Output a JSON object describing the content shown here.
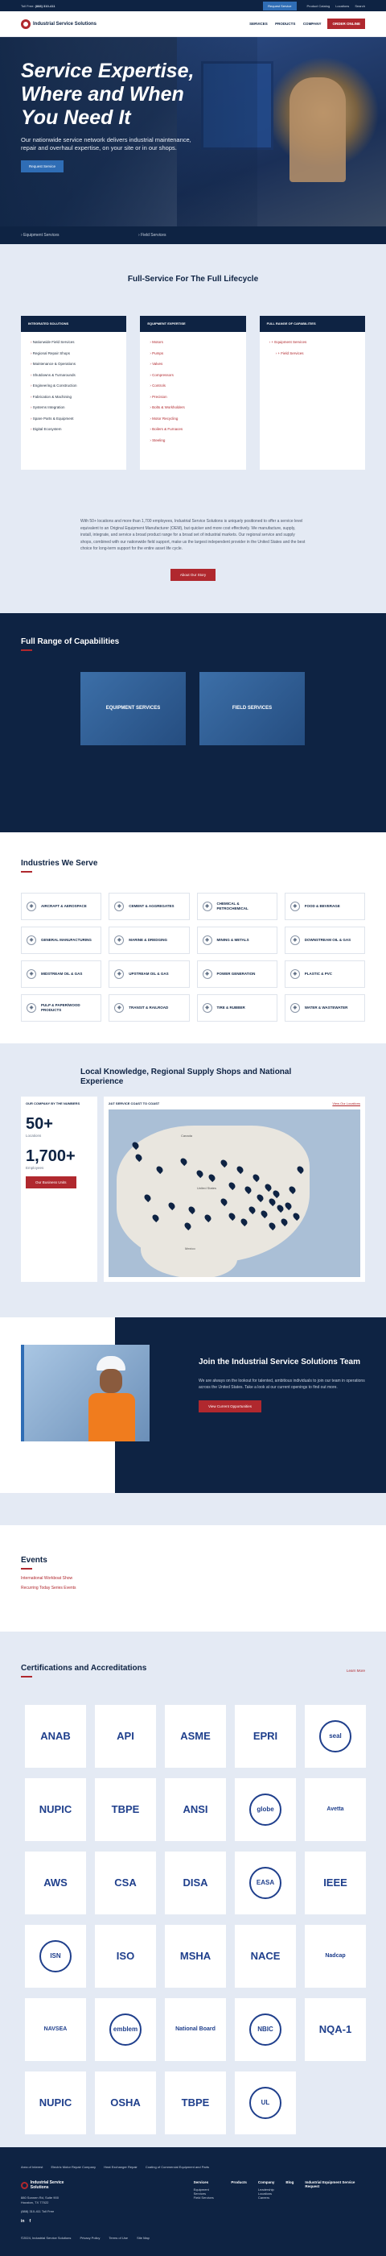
{
  "topbar": {
    "phone_label": "Toll Free:",
    "phone": "(888) 310-411",
    "request_btn": "Request Service",
    "links": [
      "Product Catalog",
      "Locations",
      "Search"
    ]
  },
  "header": {
    "brand": "Industrial Service Solutions",
    "nav": [
      "SERVICES",
      "PRODUCTS",
      "COMPANY"
    ],
    "order_btn": "ORDER ONLINE"
  },
  "hero": {
    "title": "Service Expertise, Where and When You Need It",
    "subtitle": "Our nationwide service network delivers industrial maintenance, repair and overhaul expertise, on your site or in our shops.",
    "button": "Request Service",
    "bottom_links": [
      "Equipment Services",
      "Field Services"
    ]
  },
  "lifecycle": {
    "title": "Full-Service For The Full Lifecycle",
    "cards": [
      {
        "head": "INTEGRATED SOLUTIONS",
        "items": [
          "Nationwide Field Services",
          "Regional Repair Shops",
          "Maintenance & Operations",
          "Shutdowns & Turnarounds",
          "Engineering & Construction",
          "Fabrication & Machining",
          "Systems Integration",
          "Spare Parts & Equipment",
          "Digital Ecosystem"
        ]
      },
      {
        "head": "EQUIPMENT EXPERTISE",
        "items": [
          "Motors",
          "Pumps",
          "Valves",
          "Compressors",
          "Controls",
          "Precision",
          "Bolts & Workholders",
          "Motor Recycling",
          "Boilers & Furnaces",
          "Steeling"
        ]
      },
      {
        "head": "FULL RANGE OF CAPABILITIES",
        "items": [
          "+ Equipment Services",
          "+ Field Services"
        ]
      }
    ],
    "paragraph": "With 50+ locations and more than 1,700 employees, Industrial Service Solutions is uniquely positioned to offer a service level equivalent to an Original Equipment Manufacturer (OEM), but quicker and more cost effectively. We manufacture, supply, install, integrate, and service a broad product range for a broad set of industrial markets. Our regional service and supply shops, combined with our nationwide field support, make us the largest independent provider in the United States and the best choice for long-term support for the entire asset life cycle.",
    "button": "About Our Story"
  },
  "capabilities": {
    "title": "Full Range of Capabilities",
    "tiles": [
      "EQUIPMENT SERVICES",
      "FIELD SERVICES"
    ]
  },
  "industries": {
    "title": "Industries We Serve",
    "items": [
      "AIRCRAFT & AEROSPACE",
      "CEMENT & AGGREGATES",
      "CHEMICAL & PETROCHEMICAL",
      "FOOD & BEVERAGE",
      "GENERAL MANUFACTURING",
      "MARINE & DREDGING",
      "MINING & METALS",
      "DOWNSTREAM OIL & GAS",
      "MIDSTREAM OIL & GAS",
      "UPSTREAM OIL & GAS",
      "POWER GENERATION",
      "PLASTIC & PVC",
      "PULP & PAPER/WOOD PRODUCTS",
      "TRANSIT & RAILROAD",
      "TIRE & RUBBER",
      "WATER & WASTEWATER"
    ]
  },
  "local": {
    "title": "Local Knowledge, Regional Supply Shops and National Experience",
    "stats_label": "OUR COMPANY BY THE NUMBERS",
    "locations": "50+",
    "locations_label": "Locations",
    "employees": "1,700+",
    "employees_label": "Employees",
    "stats_button": "Our Business Units",
    "map_title": "24/7 SERVICE COAST TO COAST",
    "map_link": "View Our Locations",
    "map_labels": [
      "Canada",
      "United States",
      "Mexico"
    ]
  },
  "join": {
    "title": "Join the Industrial Service Solutions Team",
    "text": "We are always on the lookout for talented, ambitious individuals to join our team in operations across the United States. Take a look at our current openings to find out more.",
    "button": "View Current Opportunities"
  },
  "events": {
    "title": "Events",
    "items": [
      "International Workboat Show",
      "Recurring Today Series Events"
    ]
  },
  "certs": {
    "title": "Certifications and Accreditations",
    "link": "Learn More",
    "logos": [
      "ANAB",
      "API",
      "ASME",
      "EPRI",
      "seal",
      "NUPIC",
      "TBPE",
      "ANSI",
      "globe",
      "Avetta",
      "AWS",
      "CSA",
      "DISA",
      "EASA",
      "IEEE",
      "ISN",
      "ISO",
      "MSHA",
      "NACE",
      "Nadcap",
      "NAVSEA",
      "emblem",
      "National Board",
      "NBIC",
      "NQA-1",
      "NUPIC",
      "OSHA",
      "TBPE",
      "UL"
    ]
  },
  "footer": {
    "top_links": [
      "Area of Interest",
      "Electric Motor Repair Company",
      "Heat Exchanger Repair",
      "Coating of Commercial Equipment and Parts"
    ],
    "brand": "Industrial Service Solutions",
    "address": [
      "880 Sonnen Rd, Suite 900",
      "Houston, TX 77022"
    ],
    "phone": "(888) 310-411 Toll Free",
    "nav": [
      {
        "head": "Services",
        "items": [
          "Equipment Services",
          "Field Services"
        ]
      },
      {
        "head": "Products",
        "items": []
      },
      {
        "head": "Company",
        "items": [
          "Leadership",
          "Locations",
          "Careers"
        ]
      },
      {
        "head": "Blog",
        "items": []
      },
      {
        "head": "Industrial Equipment Service Request",
        "items": []
      }
    ],
    "social": [
      "in",
      "f"
    ],
    "bottom": [
      "©2024, Industrial Service Solutions",
      "Privacy Policy",
      "Terms of Use",
      "Site Map"
    ]
  }
}
